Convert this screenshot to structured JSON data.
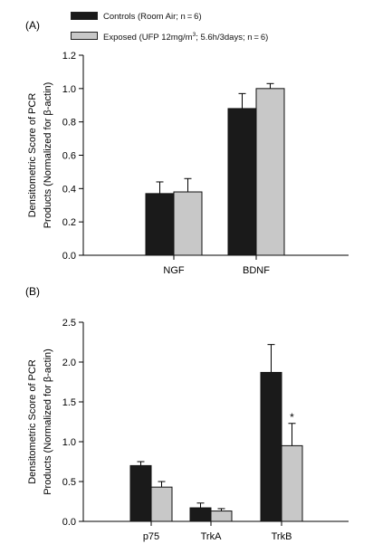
{
  "legend": {
    "controls": {
      "label": "Controls (Room Air; n = 6)",
      "color": "#1a1a1a"
    },
    "exposed": {
      "pre": "Exposed (UFP 12mg/m",
      "sup": "3",
      "post": "; 5.6h/3days; n = 6)",
      "color": "#c8c8c8"
    }
  },
  "chart_data": [
    {
      "type": "bar",
      "panel": "(A)",
      "ylabel": [
        "Densitometric Score of PCR",
        "Products (Normalized for β-actin)"
      ],
      "xlabel": "",
      "categories": [
        "NGF",
        "BDNF"
      ],
      "ylim": [
        0,
        1.2
      ],
      "yticks": [
        "0.0",
        "0.2",
        "0.4",
        "0.6",
        "0.8",
        "1.0",
        "1.2"
      ],
      "series": [
        {
          "name": "Controls (Room Air; n = 6)",
          "color": "#1a1a1a",
          "values": [
            0.37,
            0.88
          ],
          "errors": [
            0.07,
            0.09
          ]
        },
        {
          "name": "Exposed (UFP 12mg/m3; 5.6h/3days; n = 6)",
          "color": "#c8c8c8",
          "values": [
            0.38,
            1.0
          ],
          "errors": [
            0.08,
            0.03
          ]
        }
      ],
      "annotations": []
    },
    {
      "type": "bar",
      "panel": "(B)",
      "ylabel": [
        "Densitometric Score of PCR",
        "Products (Normalized for β-actin)"
      ],
      "xlabel": "",
      "categories": [
        "p75",
        "TrkA",
        "TrkB"
      ],
      "ylim": [
        0,
        2.5
      ],
      "yticks": [
        "0.0",
        "0.5",
        "1.0",
        "1.5",
        "2.0",
        "2.5"
      ],
      "series": [
        {
          "name": "Controls (Room Air; n = 6)",
          "color": "#1a1a1a",
          "values": [
            0.7,
            0.17,
            1.87
          ],
          "errors": [
            0.05,
            0.06,
            0.35
          ]
        },
        {
          "name": "Exposed (UFP 12mg/m3; 5.6h/3days; n = 6)",
          "color": "#c8c8c8",
          "values": [
            0.43,
            0.13,
            0.95
          ],
          "errors": [
            0.07,
            0.03,
            0.28
          ]
        }
      ],
      "annotations": [
        {
          "series": 1,
          "category": 2,
          "text": "*"
        }
      ]
    }
  ]
}
